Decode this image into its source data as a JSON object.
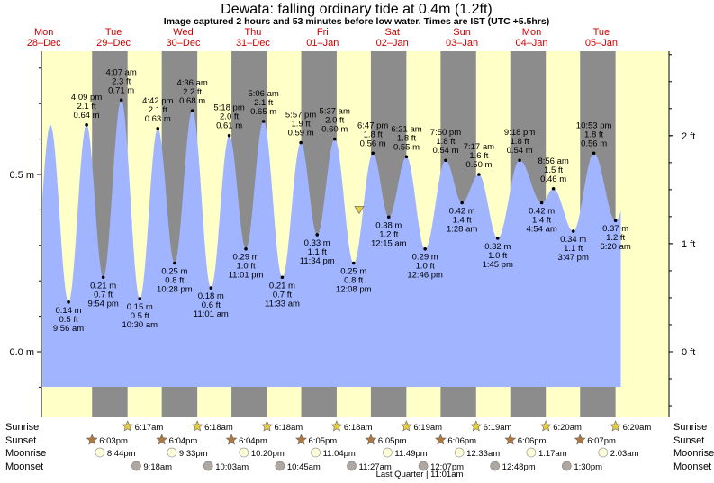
{
  "title": "Dewata: falling  ordinary tide at 0.4m (1.2ft)",
  "subtitle": "Image captured 2 hours and 53 minutes before low water. Times are IST (UTC +5.5hrs)",
  "chart_data": {
    "type": "area",
    "y_unit_left": "m",
    "y_unit_right": "ft",
    "left_ticks": [
      {
        "v": 0.5,
        "label": "0.5 m"
      },
      {
        "v": 0.0,
        "label": "0.0 m"
      }
    ],
    "right_ticks": [
      {
        "v": 2,
        "label": "2 ft"
      },
      {
        "v": 1,
        "label": "1 ft"
      },
      {
        "v": 0,
        "label": "0 ft"
      }
    ],
    "days": [
      {
        "name": "Mon",
        "date": "28–Dec"
      },
      {
        "name": "Tue",
        "date": "29–Dec"
      },
      {
        "name": "Wed",
        "date": "30–Dec"
      },
      {
        "name": "Thu",
        "date": "31–Dec"
      },
      {
        "name": "Fri",
        "date": "01–Jan"
      },
      {
        "name": "Sat",
        "date": "02–Jan"
      },
      {
        "name": "Sun",
        "date": "03–Jan"
      },
      {
        "name": "Mon",
        "date": "04–Jan"
      },
      {
        "name": "Tue",
        "date": "05–Jan"
      }
    ],
    "tides": [
      {
        "time": "9:56 am",
        "m": "0.14 m",
        "ft": "0.5 ft",
        "h": 0.14,
        "type": "low"
      },
      {
        "time": "4:09 pm",
        "m": "0.64 m",
        "ft": "2.1 ft",
        "h": 0.64,
        "type": "high"
      },
      {
        "time": "9:54 pm",
        "m": "0.21 m",
        "ft": "0.7 ft",
        "h": 0.21,
        "type": "low"
      },
      {
        "time": "4:07 am",
        "m": "0.71 m",
        "ft": "2.3 ft",
        "h": 0.71,
        "type": "high"
      },
      {
        "time": "10:30 am",
        "m": "0.15 m",
        "ft": "0.5 ft",
        "h": 0.15,
        "type": "low"
      },
      {
        "time": "4:42 pm",
        "m": "0.63 m",
        "ft": "2.1 ft",
        "h": 0.63,
        "type": "high"
      },
      {
        "time": "10:28 pm",
        "m": "0.25 m",
        "ft": "0.8 ft",
        "h": 0.25,
        "type": "low"
      },
      {
        "time": "4:36 am",
        "m": "0.68 m",
        "ft": "2.2 ft",
        "h": 0.68,
        "type": "high"
      },
      {
        "time": "11:01 am",
        "m": "0.18 m",
        "ft": "0.6 ft",
        "h": 0.18,
        "type": "low"
      },
      {
        "time": "5:18 pm",
        "m": "0.61 m",
        "ft": "2.0 ft",
        "h": 0.61,
        "type": "high"
      },
      {
        "time": "11:01 pm",
        "m": "0.29 m",
        "ft": "1.0 ft",
        "h": 0.29,
        "type": "low"
      },
      {
        "time": "5:06 am",
        "m": "0.65 m",
        "ft": "2.1 ft",
        "h": 0.65,
        "type": "high"
      },
      {
        "time": "11:33 am",
        "m": "0.21 m",
        "ft": "0.7 ft",
        "h": 0.21,
        "type": "low"
      },
      {
        "time": "5:57 pm",
        "m": "0.59 m",
        "ft": "1.9 ft",
        "h": 0.59,
        "type": "high"
      },
      {
        "time": "11:34 pm",
        "m": "0.33 m",
        "ft": "1.1 ft",
        "h": 0.33,
        "type": "low"
      },
      {
        "time": "5:37 am",
        "m": "0.60 m",
        "ft": "2.0 ft",
        "h": 0.6,
        "type": "high"
      },
      {
        "time": "12:08 pm",
        "m": "0.25 m",
        "ft": "0.8 ft",
        "h": 0.25,
        "type": "low"
      },
      {
        "time": "6:47 pm",
        "m": "0.56 m",
        "ft": "1.8 ft",
        "h": 0.56,
        "type": "high"
      },
      {
        "time": "12:15 am",
        "m": "0.38 m",
        "ft": "1.2 ft",
        "h": 0.38,
        "type": "low"
      },
      {
        "time": "6:21 am",
        "m": "0.55 m",
        "ft": "1.8 ft",
        "h": 0.55,
        "type": "high"
      },
      {
        "time": "12:46 pm",
        "m": "0.29 m",
        "ft": "1.0 ft",
        "h": 0.29,
        "type": "low"
      },
      {
        "time": "7:50 pm",
        "m": "0.54 m",
        "ft": "1.8 ft",
        "h": 0.54,
        "type": "high"
      },
      {
        "time": "1:28 am",
        "m": "0.42 m",
        "ft": "1.4 ft",
        "h": 0.42,
        "type": "low"
      },
      {
        "time": "7:17 am",
        "m": "0.50 m",
        "ft": "1.6 ft",
        "h": 0.5,
        "type": "high"
      },
      {
        "time": "1:45 pm",
        "m": "0.32 m",
        "ft": "1.0 ft",
        "h": 0.32,
        "type": "low"
      },
      {
        "time": "9:18 pm",
        "m": "0.54 m",
        "ft": "1.8 ft",
        "h": 0.54,
        "type": "high"
      },
      {
        "time": "4:54 am",
        "m": "0.42 m",
        "ft": "1.4 ft",
        "h": 0.42,
        "type": "low"
      },
      {
        "time": "8:56 am",
        "m": "0.46 m",
        "ft": "1.5 ft",
        "h": 0.46,
        "type": "high"
      },
      {
        "time": "3:47 pm",
        "m": "0.34 m",
        "ft": "1.1 ft",
        "h": 0.34,
        "type": "low"
      },
      {
        "time": "10:53 pm",
        "m": "0.56 m",
        "ft": "1.8 ft",
        "h": 0.56,
        "type": "high"
      },
      {
        "time": "6:20 am",
        "m": "0.37 m",
        "ft": "1.2 ft",
        "h": 0.37,
        "type": "low"
      }
    ],
    "current_level_m": 0.4,
    "row_labels": [
      "Sunrise",
      "Sunset",
      "Moonrise",
      "Moonset"
    ],
    "sunrise": [
      "6:17am",
      "6:18am",
      "6:18am",
      "6:18am",
      "6:19am",
      "6:19am",
      "6:20am",
      "6:20am"
    ],
    "sunset": [
      "6:03pm",
      "6:04pm",
      "6:04pm",
      "6:05pm",
      "6:05pm",
      "6:06pm",
      "6:06pm",
      "6:07pm"
    ],
    "moonrise": [
      "8:44pm",
      "9:33pm",
      "10:20pm",
      "11:04pm",
      "11:49pm",
      "12:33am",
      "1:17am",
      "2:03am"
    ],
    "moonset": [
      "9:18am",
      "10:03am",
      "10:45am",
      "11:27am",
      "12:07pm",
      "12:48pm",
      "1:30pm"
    ],
    "moon_phase": "Last Quarter | 11:01am",
    "colors": {
      "day_bg": "#ffffc8",
      "night_bg": "#8c8c8c",
      "water": "#a0b4ff",
      "day_label": "#d00000",
      "sun_star": "#e8cc3c",
      "sunset_star": "#b07840",
      "moonrise": "#ffffd8",
      "moonset": "#b0a8a0"
    }
  }
}
